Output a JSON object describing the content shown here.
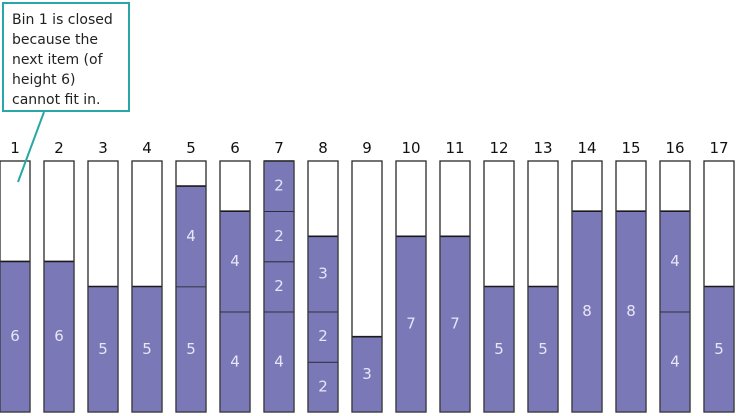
{
  "callout": {
    "text": "Bin 1 is closed because the next item (of height 6) cannot fit in."
  },
  "bin_capacity": 10,
  "bins": [
    {
      "number": "1",
      "items": [
        6
      ]
    },
    {
      "number": "2",
      "items": [
        6
      ]
    },
    {
      "number": "3",
      "items": [
        5
      ]
    },
    {
      "number": "4",
      "items": [
        5
      ]
    },
    {
      "number": "5",
      "items": [
        5,
        4
      ]
    },
    {
      "number": "6",
      "items": [
        4,
        4
      ]
    },
    {
      "number": "7",
      "items": [
        4,
        2,
        2,
        2
      ]
    },
    {
      "number": "8",
      "items": [
        2,
        2,
        3
      ]
    },
    {
      "number": "9",
      "items": [
        3
      ]
    },
    {
      "number": "10",
      "items": [
        7
      ]
    },
    {
      "number": "11",
      "items": [
        7
      ]
    },
    {
      "number": "12",
      "items": [
        5
      ]
    },
    {
      "number": "13",
      "items": [
        5
      ]
    },
    {
      "number": "14",
      "items": [
        8
      ]
    },
    {
      "number": "15",
      "items": [
        8
      ]
    },
    {
      "number": "16",
      "items": [
        4,
        4
      ]
    },
    {
      "number": "17",
      "items": [
        5
      ]
    }
  ],
  "colors": {
    "item_fill": "#7b78b8",
    "divider": "#1a1a1a",
    "bin_border": "#333333",
    "callout_border": "#2aa6a6"
  }
}
